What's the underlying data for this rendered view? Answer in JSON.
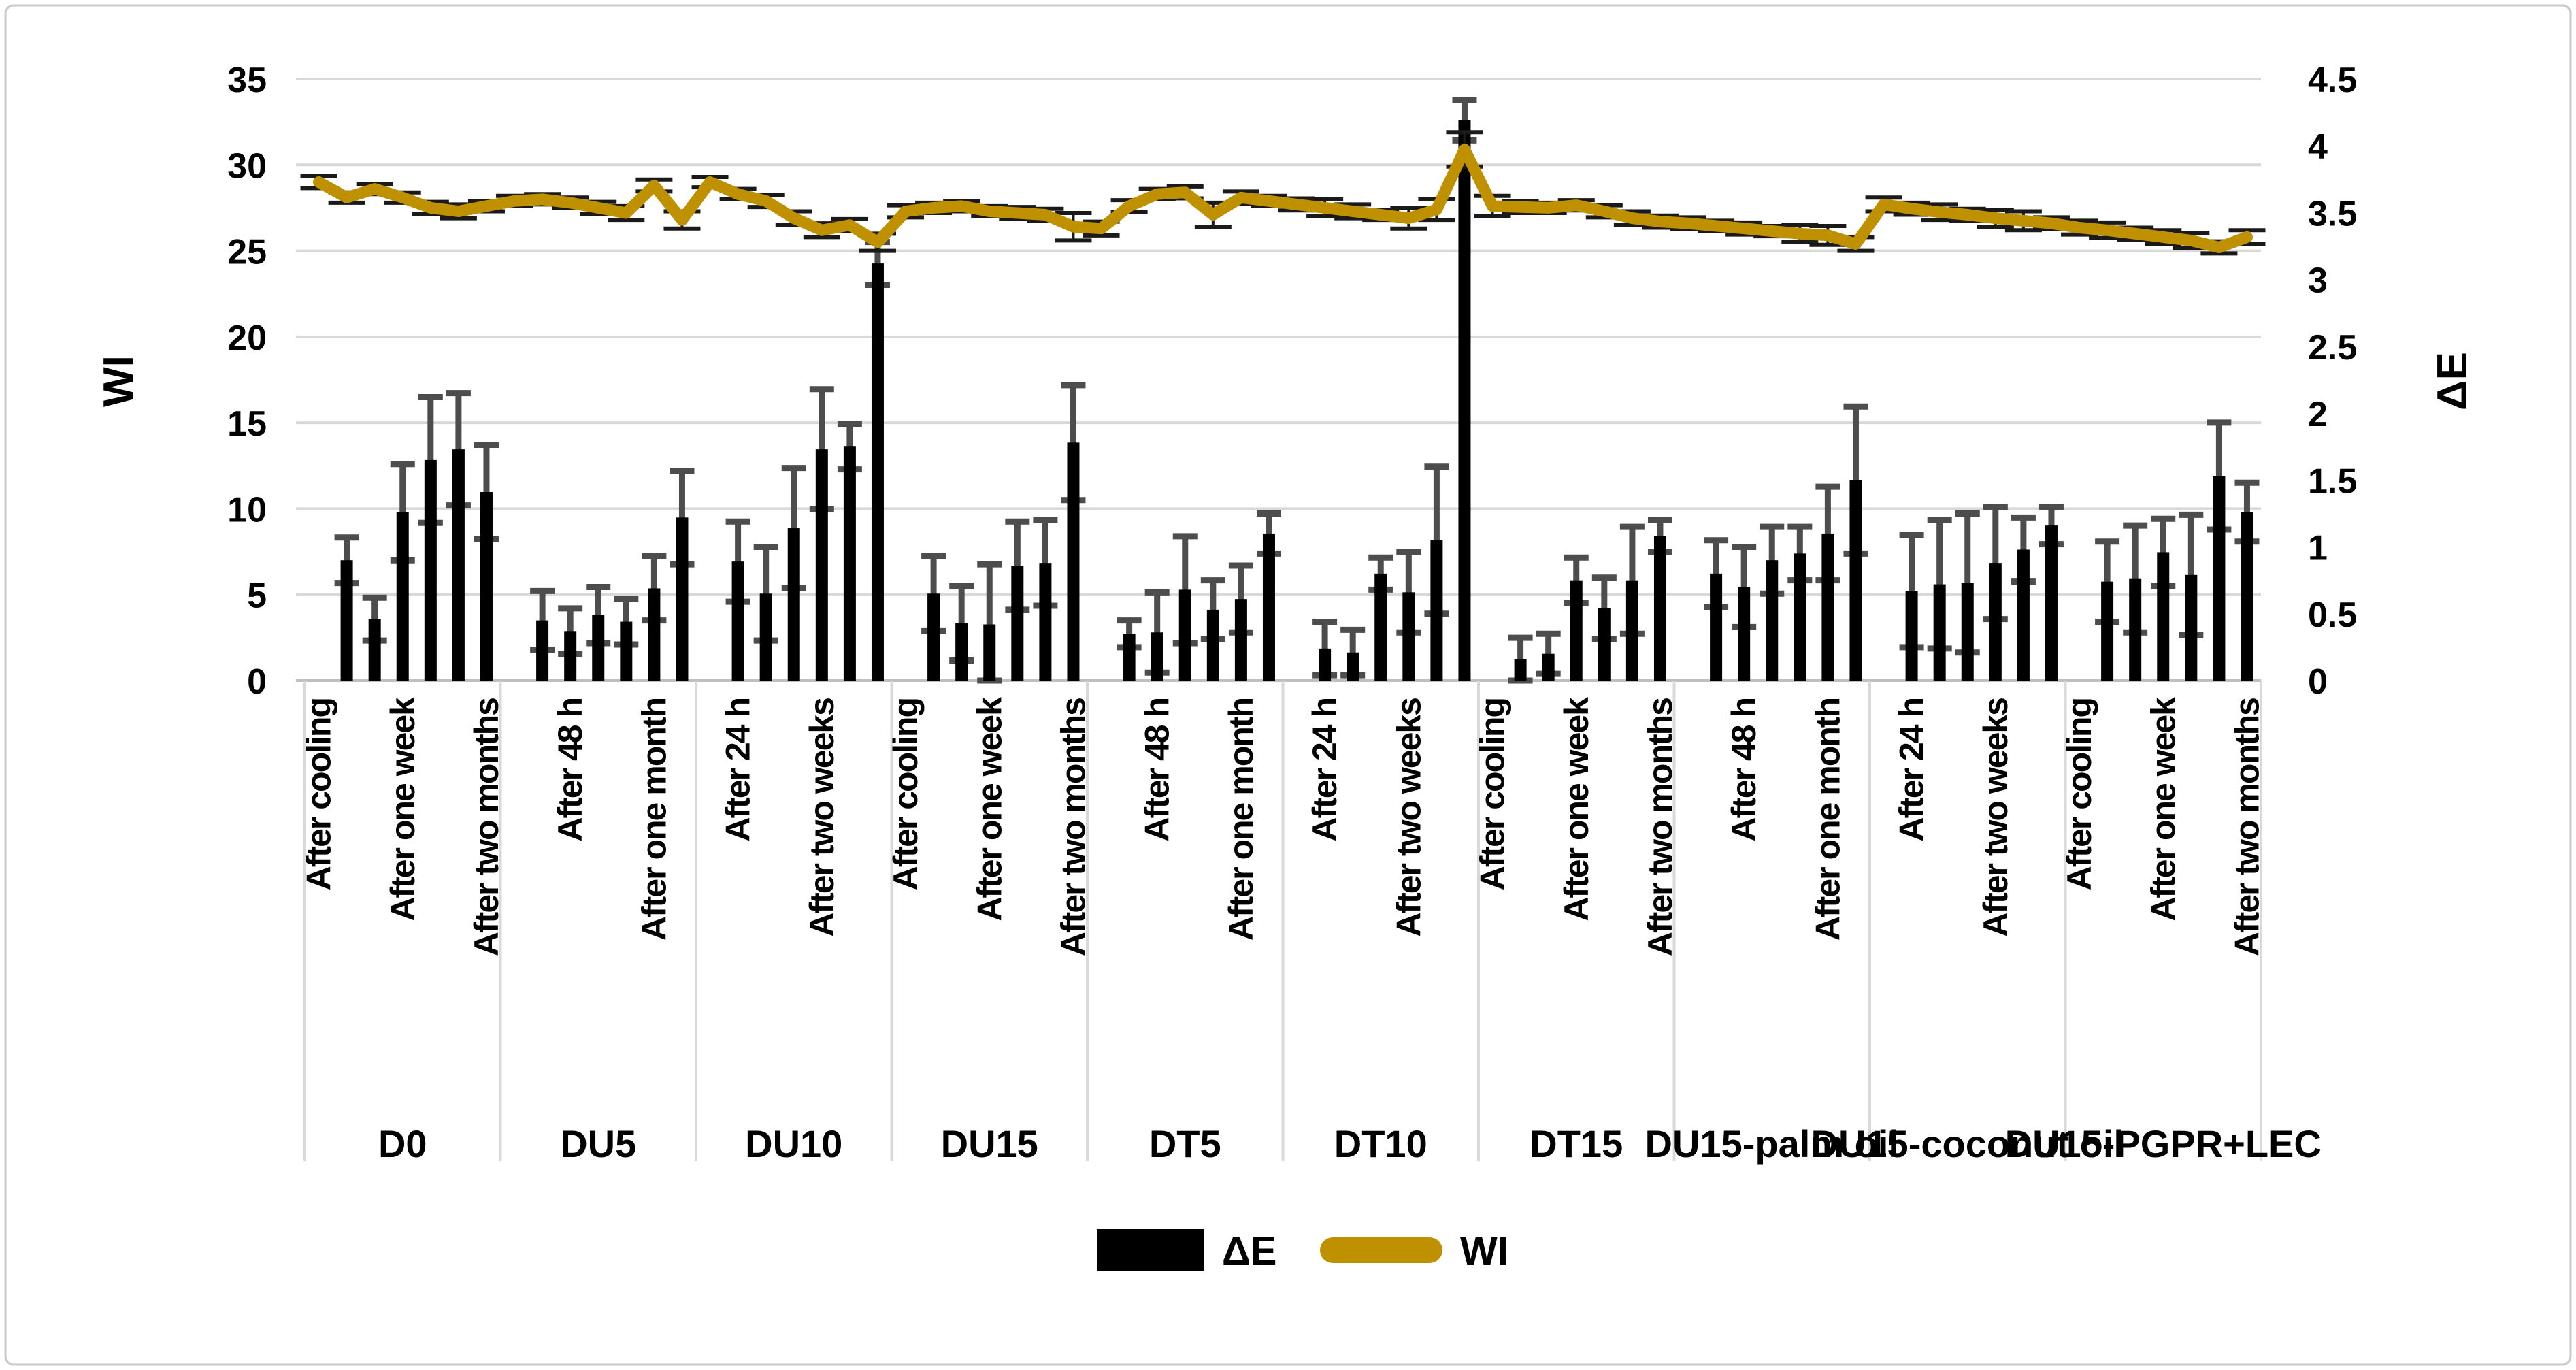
{
  "chart_data": {
    "type": "bar+line combo",
    "title": "",
    "left_axis": {
      "label": "WI",
      "min": 0,
      "max": 35,
      "step": 5,
      "ticks": [
        0,
        5,
        10,
        15,
        20,
        25,
        30,
        35
      ]
    },
    "right_axis": {
      "label": "ΔE",
      "min": 0,
      "max": 4.5,
      "step": 0.5,
      "ticks": [
        0,
        0.5,
        1,
        1.5,
        2,
        2.5,
        3,
        3.5,
        4,
        4.5
      ]
    },
    "grid": "horizontal gridlines at left-axis steps",
    "legend_position": "bottom",
    "time_points": [
      "After cooling",
      "After 24 h",
      "After 48 h",
      "After one week",
      "After two weeks",
      "After one month",
      "After two months"
    ],
    "category_label_interval": 3,
    "groups": [
      "D0",
      "DU5",
      "DU10",
      "DU15",
      "DT5",
      "DT10",
      "DT15",
      "DU15-palm oil",
      "DU15-coconut oil",
      "DU15-PGPR+LEC"
    ],
    "series": [
      {
        "name": "ΔE",
        "type": "bar",
        "axis": "right",
        "color": "#000000",
        "error_color": "#4d4d4d",
        "values": [
          [
            null,
            0.9,
            0.46,
            1.26,
            1.65,
            1.73,
            1.41
          ],
          [
            null,
            0.45,
            0.37,
            0.49,
            0.44,
            0.69,
            1.22
          ],
          [
            null,
            0.89,
            0.65,
            1.14,
            1.73,
            1.75,
            3.12
          ],
          [
            null,
            0.65,
            0.43,
            0.42,
            0.86,
            0.88,
            1.78
          ],
          [
            null,
            0.35,
            0.36,
            0.68,
            0.53,
            0.61,
            1.1
          ],
          [
            null,
            0.24,
            0.21,
            0.8,
            0.66,
            1.05,
            4.19
          ],
          [
            null,
            0.16,
            0.2,
            0.75,
            0.54,
            0.75,
            1.08
          ],
          [
            null,
            0.8,
            0.7,
            0.9,
            0.95,
            1.1,
            1.5
          ],
          [
            null,
            0.67,
            0.72,
            0.73,
            0.88,
            0.98,
            1.16
          ],
          [
            null,
            0.74,
            0.76,
            0.96,
            0.79,
            1.53,
            1.26
          ]
        ],
        "errors": [
          [
            0,
            0.17,
            0.16,
            0.36,
            0.47,
            0.42,
            0.35
          ],
          [
            0,
            0.22,
            0.17,
            0.21,
            0.17,
            0.24,
            0.35
          ],
          [
            0,
            0.3,
            0.35,
            0.45,
            0.45,
            0.17,
            0.16
          ],
          [
            0,
            0.28,
            0.28,
            0.45,
            0.33,
            0.32,
            0.43
          ],
          [
            0,
            0.1,
            0.3,
            0.4,
            0.22,
            0.25,
            0.15
          ],
          [
            0,
            0.2,
            0.17,
            0.12,
            0.3,
            0.55,
            0.15
          ],
          [
            0,
            0.16,
            0.15,
            0.17,
            0.23,
            0.4,
            0.12
          ],
          [
            0,
            0.25,
            0.3,
            0.25,
            0.2,
            0.35,
            0.55
          ],
          [
            0,
            0.42,
            0.48,
            0.52,
            0.42,
            0.24,
            0.14
          ],
          [
            0,
            0.3,
            0.4,
            0.25,
            0.45,
            0.4,
            0.22
          ]
        ]
      },
      {
        "name": "WI",
        "type": "line",
        "axis": "left",
        "color": "#bf9000",
        "error_color": "#1a1a1a",
        "values": [
          [
            29.0,
            28.1,
            28.6,
            28.1,
            27.5,
            27.3,
            27.6
          ],
          [
            27.9,
            28.0,
            27.8,
            27.5,
            27.2,
            28.8,
            26.8
          ],
          [
            29.0,
            28.3,
            27.9,
            26.9,
            26.2,
            26.5,
            25.5
          ],
          [
            27.3,
            27.5,
            27.6,
            27.3,
            27.2,
            27.1,
            26.4
          ],
          [
            26.3,
            27.6,
            28.3,
            28.4,
            27.1,
            28.1,
            27.9
          ],
          [
            27.7,
            27.5,
            27.3,
            27.1,
            26.9,
            27.4,
            30.9
          ],
          [
            27.6,
            27.55,
            27.5,
            27.65,
            27.3,
            26.9,
            26.7
          ],
          [
            26.6,
            26.45,
            26.3,
            26.15,
            26.0,
            25.9,
            25.4
          ],
          [
            27.7,
            27.45,
            27.25,
            27.1,
            26.9,
            26.75,
            26.6
          ],
          [
            26.35,
            26.2,
            26.0,
            25.8,
            25.6,
            25.2,
            25.8
          ]
        ],
        "errors": [
          [
            0.35,
            0.3,
            0.3,
            0.3,
            0.35,
            0.4,
            0.3
          ],
          [
            0.3,
            0.3,
            0.3,
            0.35,
            0.4,
            0.35,
            0.5
          ],
          [
            0.3,
            0.3,
            0.35,
            0.4,
            0.4,
            0.35,
            0.5
          ],
          [
            0.35,
            0.3,
            0.3,
            0.3,
            0.35,
            0.35,
            0.8
          ],
          [
            0.4,
            0.35,
            0.3,
            0.35,
            0.7,
            0.35,
            0.3
          ],
          [
            0.35,
            0.5,
            0.4,
            0.3,
            0.6,
            0.6,
            1.0
          ],
          [
            0.6,
            0.35,
            0.3,
            0.3,
            0.35,
            0.4,
            0.35
          ],
          [
            0.35,
            0.3,
            0.35,
            0.3,
            0.5,
            0.55,
            0.4
          ],
          [
            0.4,
            0.35,
            0.45,
            0.35,
            0.5,
            0.55,
            0.35
          ],
          [
            0.4,
            0.45,
            0.35,
            0.4,
            0.45,
            0.35,
            0.4
          ]
        ]
      }
    ],
    "colors": {
      "bar": "#000000",
      "bar_error": "#4d4d4d",
      "line": "#bf9000",
      "line_error": "#1a1a1a",
      "gridline": "#d9d9d9",
      "axis_line": "#bfbfbf",
      "divider": "#d9d9d9",
      "border": "#c8c8c8",
      "text": "#000000"
    }
  }
}
